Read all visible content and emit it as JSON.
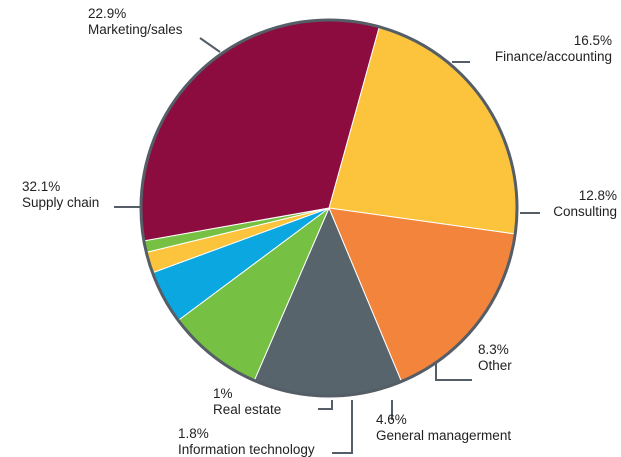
{
  "chart_data": {
    "type": "pie",
    "title": "",
    "slices": [
      {
        "label": "Marketing/sales",
        "value": 22.9,
        "value_label": "22.9%",
        "color": "#fcc43c"
      },
      {
        "label": "Finance/accounting",
        "value": 16.5,
        "value_label": "16.5%",
        "color": "#f2843c"
      },
      {
        "label": "Consulting",
        "value": 12.8,
        "value_label": "12.8%",
        "color": "#57646c"
      },
      {
        "label": "Other",
        "value": 8.3,
        "value_label": "8.3%",
        "color": "#76c043"
      },
      {
        "label": "General managerment",
        "value": 4.6,
        "value_label": "4.6%",
        "color": "#0ba7e0"
      },
      {
        "label": "Information technology",
        "value": 1.8,
        "value_label": "1.8%",
        "color": "#fcc43c"
      },
      {
        "label": "Real estate",
        "value": 1,
        "value_label": "1%",
        "color": "#76c043"
      },
      {
        "label": "Supply chain",
        "value": 32.1,
        "value_label": "32.1%",
        "color": "#8c0c40"
      }
    ],
    "legend": "none",
    "border_color": "#555e66"
  }
}
